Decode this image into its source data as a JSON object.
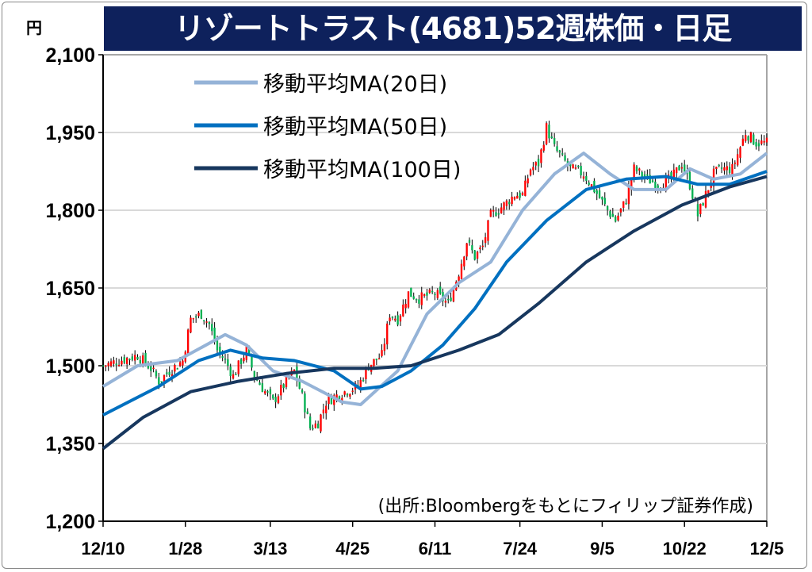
{
  "chart_data": {
    "type": "candlestick",
    "title": "リゾートトラスト(4681)52週株価・日足",
    "unit_label": "円",
    "source": "(出所:Bloombergをもとにフィリップ証券作成)",
    "ylim": [
      1200,
      2100
    ],
    "yticks": [
      1200,
      1350,
      1500,
      1650,
      1800,
      1950,
      2100
    ],
    "ytick_labels": [
      "1,200",
      "1,350",
      "1,500",
      "1,650",
      "1,800",
      "1,950",
      "2,100"
    ],
    "xlim": [
      0,
      250
    ],
    "xticks": [
      {
        "t": 0,
        "label": "12/10"
      },
      {
        "t": 31,
        "label": "1/28"
      },
      {
        "t": 63,
        "label": "3/13"
      },
      {
        "t": 94,
        "label": "4/25"
      },
      {
        "t": 125,
        "label": "6/11"
      },
      {
        "t": 157,
        "label": "7/24"
      },
      {
        "t": 188,
        "label": "9/5"
      },
      {
        "t": 219,
        "label": "10/22"
      },
      {
        "t": 250,
        "label": "12/5"
      }
    ],
    "x_unit": "trading-day index",
    "grid": true,
    "legend_position": "top-left",
    "up_color": "#ff0000",
    "down_color": "#00b050",
    "close_keypoints": [
      [
        0,
        1500
      ],
      [
        6,
        1510
      ],
      [
        13,
        1520
      ],
      [
        18,
        1495
      ],
      [
        21,
        1470
      ],
      [
        25,
        1490
      ],
      [
        30,
        1510
      ],
      [
        33,
        1590
      ],
      [
        37,
        1600
      ],
      [
        40,
        1580
      ],
      [
        43,
        1530
      ],
      [
        46,
        1510
      ],
      [
        49,
        1480
      ],
      [
        54,
        1530
      ],
      [
        57,
        1480
      ],
      [
        61,
        1450
      ],
      [
        64,
        1430
      ],
      [
        69,
        1470
      ],
      [
        72,
        1490
      ],
      [
        75,
        1440
      ],
      [
        78,
        1380
      ],
      [
        81,
        1390
      ],
      [
        84,
        1430
      ],
      [
        87,
        1440
      ],
      [
        91,
        1450
      ],
      [
        96,
        1460
      ],
      [
        100,
        1500
      ],
      [
        105,
        1520
      ],
      [
        108,
        1600
      ],
      [
        111,
        1590
      ],
      [
        115,
        1640
      ],
      [
        119,
        1630
      ],
      [
        125,
        1640
      ],
      [
        130,
        1620
      ],
      [
        134,
        1680
      ],
      [
        137,
        1740
      ],
      [
        140,
        1710
      ],
      [
        143,
        1730
      ],
      [
        146,
        1790
      ],
      [
        151,
        1810
      ],
      [
        155,
        1830
      ],
      [
        158,
        1830
      ],
      [
        161,
        1880
      ],
      [
        164,
        1890
      ],
      [
        167,
        1960
      ],
      [
        170,
        1920
      ],
      [
        173,
        1900
      ],
      [
        176,
        1880
      ],
      [
        181,
        1870
      ],
      [
        185,
        1840
      ],
      [
        190,
        1800
      ],
      [
        193,
        1780
      ],
      [
        197,
        1820
      ],
      [
        200,
        1880
      ],
      [
        205,
        1860
      ],
      [
        209,
        1850
      ],
      [
        214,
        1860
      ],
      [
        218,
        1890
      ],
      [
        221,
        1850
      ],
      [
        224,
        1790
      ],
      [
        227,
        1830
      ],
      [
        230,
        1870
      ],
      [
        233,
        1880
      ],
      [
        237,
        1880
      ],
      [
        242,
        1950
      ],
      [
        246,
        1930
      ],
      [
        250,
        1930
      ]
    ],
    "series": [
      {
        "name": "移動平均MA(20日)",
        "color": "#95b3d7",
        "width": 4,
        "points": [
          [
            0,
            1460
          ],
          [
            13,
            1500
          ],
          [
            28,
            1510
          ],
          [
            46,
            1560
          ],
          [
            54,
            1540
          ],
          [
            64,
            1490
          ],
          [
            75,
            1470
          ],
          [
            90,
            1430
          ],
          [
            97,
            1425
          ],
          [
            111,
            1490
          ],
          [
            122,
            1600
          ],
          [
            134,
            1660
          ],
          [
            146,
            1700
          ],
          [
            158,
            1800
          ],
          [
            170,
            1870
          ],
          [
            181,
            1910
          ],
          [
            191,
            1870
          ],
          [
            200,
            1840
          ],
          [
            212,
            1840
          ],
          [
            221,
            1880
          ],
          [
            230,
            1860
          ],
          [
            240,
            1870
          ],
          [
            250,
            1910
          ]
        ]
      },
      {
        "name": "移動平均MA(50日)",
        "color": "#0070c0",
        "width": 4,
        "points": [
          [
            0,
            1405
          ],
          [
            21,
            1460
          ],
          [
            36,
            1510
          ],
          [
            48,
            1530
          ],
          [
            60,
            1515
          ],
          [
            72,
            1510
          ],
          [
            87,
            1490
          ],
          [
            97,
            1455
          ],
          [
            105,
            1460
          ],
          [
            116,
            1490
          ],
          [
            128,
            1540
          ],
          [
            140,
            1610
          ],
          [
            152,
            1700
          ],
          [
            167,
            1780
          ],
          [
            182,
            1840
          ],
          [
            197,
            1860
          ],
          [
            212,
            1865
          ],
          [
            224,
            1850
          ],
          [
            236,
            1850
          ],
          [
            250,
            1875
          ]
        ]
      },
      {
        "name": "移動平均MA(100日)",
        "color": "#17375e",
        "width": 4,
        "points": [
          [
            0,
            1340
          ],
          [
            15,
            1400
          ],
          [
            33,
            1450
          ],
          [
            51,
            1470
          ],
          [
            69,
            1485
          ],
          [
            87,
            1495
          ],
          [
            102,
            1495
          ],
          [
            116,
            1500
          ],
          [
            134,
            1530
          ],
          [
            149,
            1560
          ],
          [
            164,
            1620
          ],
          [
            182,
            1700
          ],
          [
            200,
            1760
          ],
          [
            218,
            1810
          ],
          [
            236,
            1845
          ],
          [
            250,
            1865
          ]
        ]
      }
    ]
  }
}
